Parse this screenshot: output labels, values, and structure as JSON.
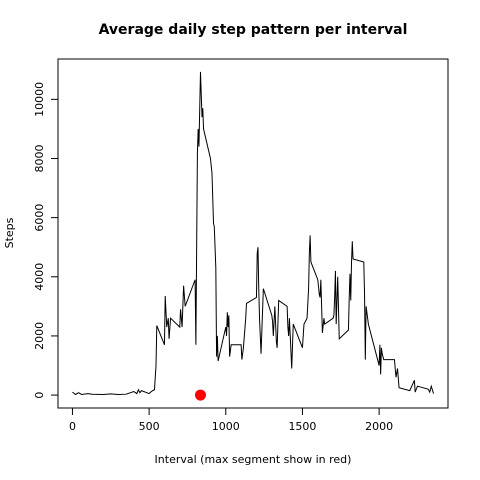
{
  "chart_data": {
    "type": "line",
    "title": "Average daily step pattern per interval",
    "x_label": "Interval (max segment show in red)",
    "y_label": "Steps",
    "x": [
      0,
      20,
      40,
      60,
      100,
      130,
      200,
      250,
      300,
      350,
      400,
      420,
      430,
      440,
      450,
      500,
      510,
      520,
      535,
      545,
      550,
      600,
      605,
      615,
      625,
      630,
      640,
      700,
      705,
      715,
      725,
      735,
      800,
      805,
      815,
      820,
      825,
      835,
      845,
      850,
      855,
      900,
      910,
      920,
      925,
      935,
      940,
      945,
      950,
      1000,
      1005,
      1010,
      1015,
      1020,
      1025,
      1035,
      1100,
      1105,
      1115,
      1130,
      1135,
      1200,
      1205,
      1210,
      1215,
      1220,
      1230,
      1245,
      1300,
      1305,
      1310,
      1320,
      1330,
      1335,
      1345,
      1400,
      1405,
      1410,
      1415,
      1430,
      1440,
      1500,
      1510,
      1530,
      1540,
      1545,
      1550,
      1555,
      1600,
      1610,
      1615,
      1620,
      1630,
      1640,
      1645,
      1700,
      1705,
      1710,
      1715,
      1720,
      1730,
      1740,
      1800,
      1805,
      1810,
      1815,
      1820,
      1825,
      1830,
      1900,
      1905,
      1910,
      1915,
      1930,
      2000,
      2005,
      2010,
      2015,
      2020,
      2030,
      2100,
      2110,
      2120,
      2130,
      2200,
      2230,
      2235,
      2250,
      2320,
      2330,
      2340,
      2355
    ],
    "series": [
      {
        "name": "Steps",
        "color": "#000000",
        "values": [
          100,
          20,
          80,
          20,
          50,
          30,
          20,
          40,
          20,
          30,
          120,
          50,
          180,
          80,
          150,
          50,
          100,
          140,
          180,
          1000,
          2350,
          1700,
          3350,
          2300,
          2600,
          1900,
          2600,
          2300,
          2900,
          2300,
          3700,
          3000,
          3900,
          1700,
          8200,
          9000,
          8400,
          10927,
          9400,
          9700,
          9000,
          8000,
          7500,
          5800,
          5700,
          4300,
          1300,
          2000,
          1150,
          2300,
          2000,
          2800,
          2300,
          2700,
          1300,
          1700,
          1700,
          1200,
          1600,
          2600,
          3100,
          3300,
          4800,
          5000,
          3600,
          2600,
          1400,
          3600,
          2700,
          2500,
          2000,
          3000,
          1800,
          1600,
          3200,
          3000,
          2300,
          2000,
          2600,
          900,
          2400,
          1600,
          2400,
          2600,
          3600,
          4800,
          5400,
          4500,
          3900,
          3400,
          3300,
          3900,
          2100,
          2600,
          2400,
          2600,
          2700,
          3300,
          4200,
          2400,
          4000,
          1900,
          2200,
          3300,
          4100,
          3200,
          4500,
          5200,
          4600,
          4500,
          3400,
          1200,
          3000,
          2400,
          1000,
          1700,
          700,
          1600,
          1400,
          1200,
          1200,
          600,
          900,
          250,
          150,
          500,
          100,
          300,
          200,
          100,
          300,
          50
        ]
      }
    ],
    "highlight": {
      "x": 835,
      "y": 0,
      "color": "#ff0000"
    },
    "xlim": [
      -94.2,
      2449.2
    ],
    "ylim": [
      -437,
      11364
    ],
    "xticks": [
      0,
      500,
      1000,
      1500,
      2000
    ],
    "yticks": [
      0,
      2000,
      4000,
      6000,
      8000,
      10000
    ]
  }
}
